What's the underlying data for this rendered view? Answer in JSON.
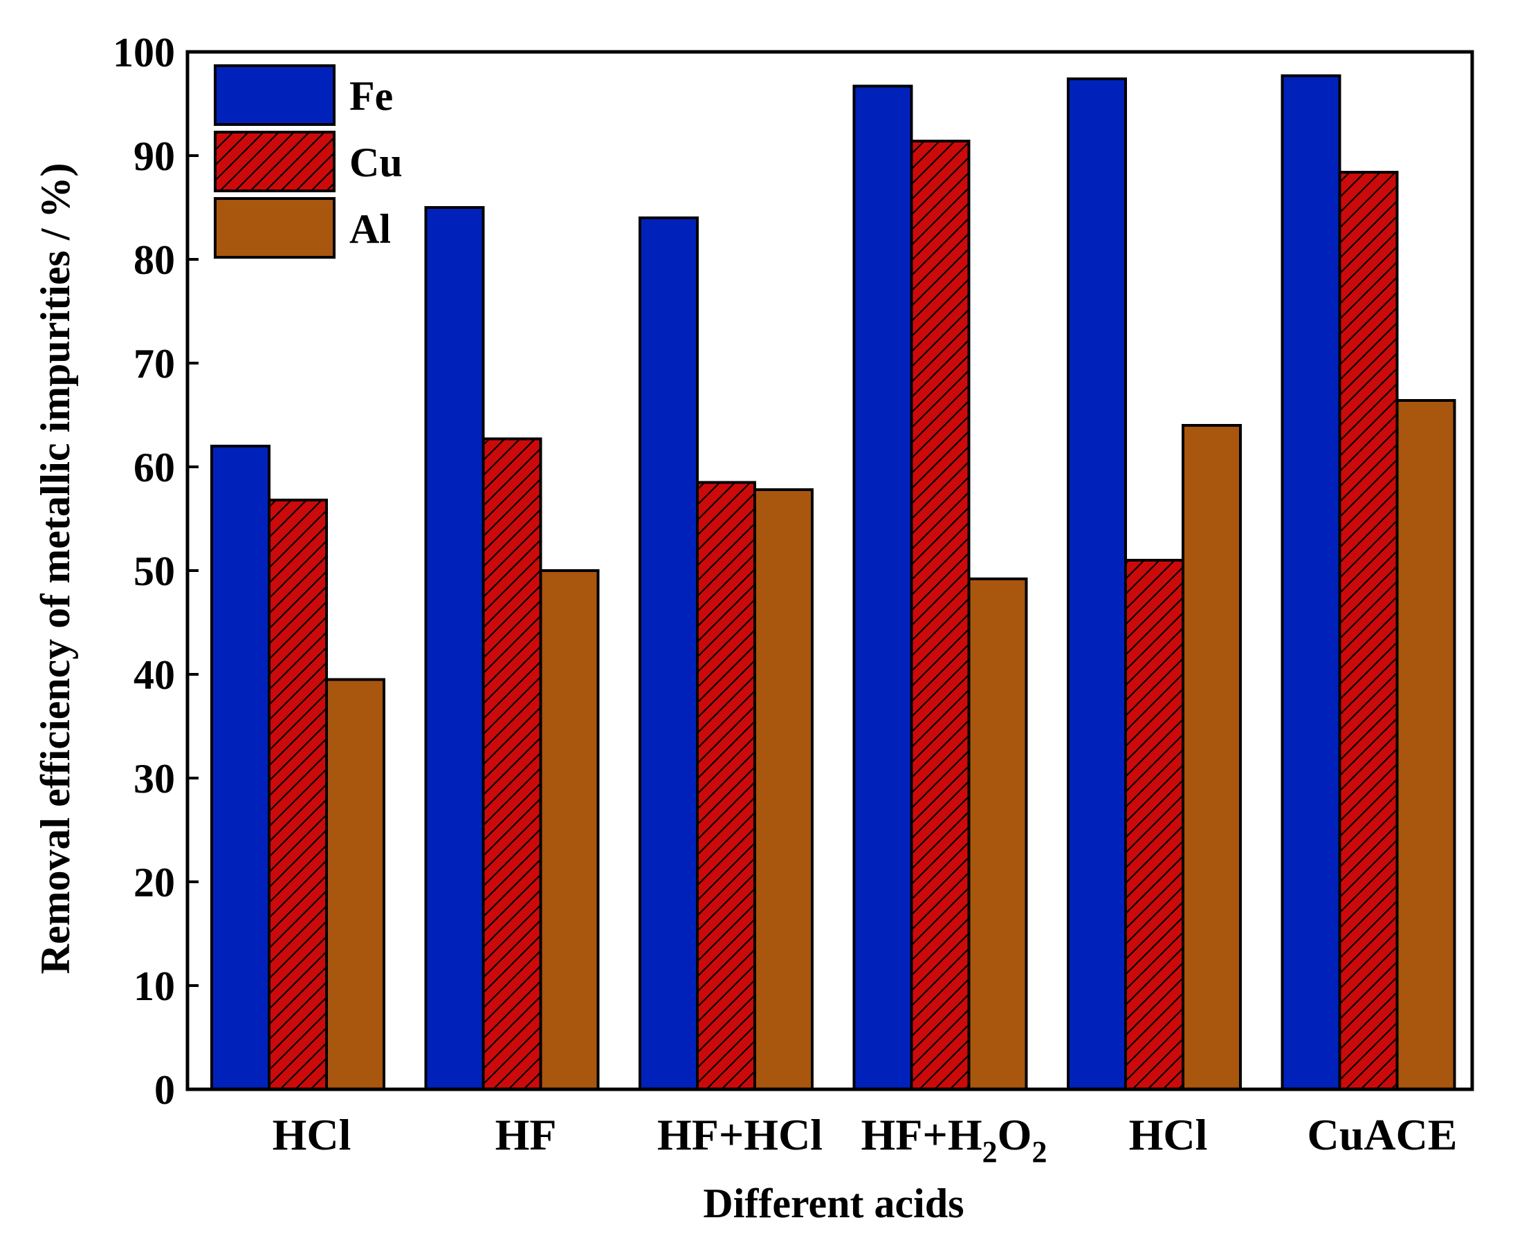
{
  "chart_data": {
    "type": "bar",
    "title": "",
    "xlabel": "Different acids",
    "ylabel": "Removal efficiency of metallic impurities / %)",
    "ylim": [
      0,
      100
    ],
    "yticks": [
      0,
      10,
      20,
      30,
      40,
      50,
      60,
      70,
      80,
      90,
      100
    ],
    "categories": [
      {
        "label": "HCl"
      },
      {
        "label": "HF"
      },
      {
        "label": "HF+HCl"
      },
      {
        "label": "HF+",
        "sub_parts": [
          {
            "text": "H"
          },
          {
            "sub": "2"
          },
          {
            "text": "O"
          },
          {
            "sub": "2"
          }
        ]
      },
      {
        "label": "HCl"
      },
      {
        "label": "CuACE"
      }
    ],
    "series": [
      {
        "name": "Fe",
        "color": "#0022bb",
        "pattern": "solid",
        "values": [
          62.0,
          85.0,
          84.0,
          96.7,
          97.4,
          97.7
        ]
      },
      {
        "name": "Cu",
        "color": "#cc0a0a",
        "pattern": "hatched",
        "values": [
          56.8,
          62.7,
          58.5,
          91.4,
          51.0,
          88.4
        ]
      },
      {
        "name": "Al",
        "color": "#a9560e",
        "pattern": "solid",
        "values": [
          39.5,
          50.0,
          57.8,
          49.2,
          64.0,
          66.4
        ]
      }
    ],
    "legend_position": "top-left",
    "grid": false
  }
}
